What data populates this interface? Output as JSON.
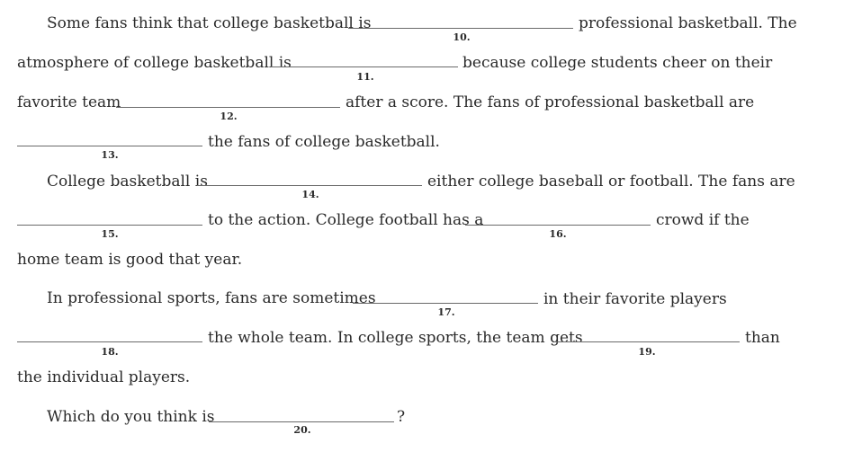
{
  "lines": [
    {
      "before": "Some fans think that college basketball is",
      "num": "10.",
      "after": "professional basketball. The"
    },
    {
      "before": "atmosphere of college basketball is",
      "num": "11.",
      "after": "because college students cheer on their"
    },
    {
      "before": "favorite team",
      "num": "12.",
      "after": "after a score. The fans of professional basketball are"
    },
    {
      "num": "13.",
      "after": "the fans of college basketball."
    },
    {
      "before": "College basketball is",
      "num": "14.",
      "after": "either college baseball or football. The fans are"
    },
    {
      "num": "15.",
      "mid": "to the action. College football has a",
      "num2": "16.",
      "after": "crowd if the"
    },
    {
      "text": "home team is good that year."
    },
    {
      "before": "In professional sports, fans are sometimes",
      "num": "17.",
      "after": "in their favorite players"
    },
    {
      "num": "18.",
      "mid": "the whole team. In college sports, the team gets",
      "num2": "19.",
      "after": "than"
    },
    {
      "text": "the individual players."
    },
    {
      "before": "Which do you think is",
      "num": "20.",
      "after": "?"
    }
  ]
}
